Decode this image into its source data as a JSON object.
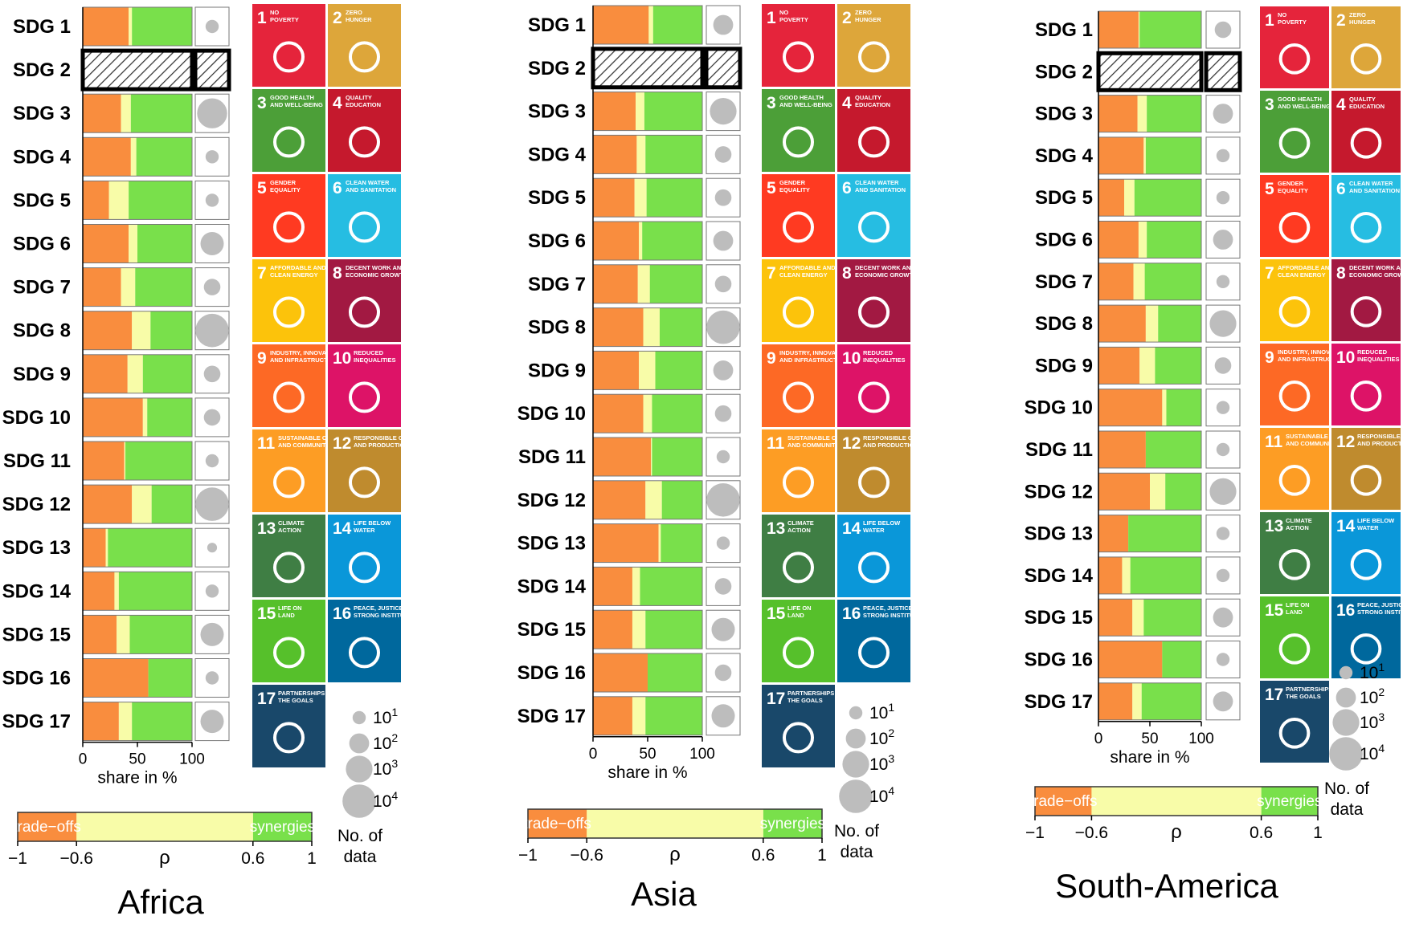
{
  "colors": {
    "tradeoff": "#f98d3e",
    "neutral": "#f8fca8",
    "synergy": "#79e04b",
    "dot": "#bdbdbd"
  },
  "sdg_labels": [
    "SDG 1",
    "SDG 2",
    "SDG 3",
    "SDG 4",
    "SDG 5",
    "SDG 6",
    "SDG 7",
    "SDG 8",
    "SDG 9",
    "SDG 10",
    "SDG 11",
    "SDG 12",
    "SDG 13",
    "SDG 14",
    "SDG 15",
    "SDG 16",
    "SDG 17"
  ],
  "x_axis": {
    "ticks": [
      "0",
      "50",
      "100"
    ],
    "label": "share in %"
  },
  "colorbar": {
    "left_label": "trade−offs",
    "right_label": "synergies",
    "ticks": [
      "−1",
      "−0.6",
      "0.6",
      "1"
    ],
    "symbol": "ρ"
  },
  "size_legend": {
    "entries": [
      "10",
      "10",
      "10",
      "10"
    ],
    "exponents": [
      "1",
      "2",
      "3",
      "4"
    ],
    "title_line1": "No. of",
    "title_line2": "data"
  },
  "tiles": [
    {
      "num": "1",
      "name": "NO POVERTY",
      "color": "#e5243b"
    },
    {
      "num": "2",
      "name": "ZERO HUNGER",
      "color": "#dda63a"
    },
    {
      "num": "3",
      "name": "GOOD HEALTH AND WELL-BEING",
      "color": "#4c9f38"
    },
    {
      "num": "4",
      "name": "QUALITY EDUCATION",
      "color": "#c5192d"
    },
    {
      "num": "5",
      "name": "GENDER EQUALITY",
      "color": "#ff3a21"
    },
    {
      "num": "6",
      "name": "CLEAN WATER AND SANITATION",
      "color": "#26bde2"
    },
    {
      "num": "7",
      "name": "AFFORDABLE AND CLEAN ENERGY",
      "color": "#fcc30b"
    },
    {
      "num": "8",
      "name": "DECENT WORK AND ECONOMIC GROWTH",
      "color": "#a21942"
    },
    {
      "num": "9",
      "name": "INDUSTRY, INNOVATION AND INFRASTRUCTURE",
      "color": "#fd6925"
    },
    {
      "num": "10",
      "name": "REDUCED INEQUALITIES",
      "color": "#dd1367"
    },
    {
      "num": "11",
      "name": "SUSTAINABLE CITIES AND COMMUNITIES",
      "color": "#fd9d24"
    },
    {
      "num": "12",
      "name": "RESPONSIBLE CONSUMPTION AND PRODUCTION",
      "color": "#bf8b2e"
    },
    {
      "num": "13",
      "name": "CLIMATE ACTION",
      "color": "#3f7e44"
    },
    {
      "num": "14",
      "name": "LIFE BELOW WATER",
      "color": "#0a97d9"
    },
    {
      "num": "15",
      "name": "LIFE ON LAND",
      "color": "#56c02b"
    },
    {
      "num": "16",
      "name": "PEACE, JUSTICE AND STRONG INSTITUTIONS",
      "color": "#00689d"
    },
    {
      "num": "17",
      "name": "PARTNERSHIPS FOR THE GOALS",
      "color": "#19486a"
    }
  ],
  "chart_data": [
    {
      "type": "bar",
      "title": "Africa",
      "orientation": "horizontal-stacked",
      "xlabel": "share in %",
      "xlim": [
        0,
        100
      ],
      "categories": [
        "SDG 1",
        "SDG 2",
        "SDG 3",
        "SDG 4",
        "SDG 5",
        "SDG 6",
        "SDG 7",
        "SDG 8",
        "SDG 9",
        "SDG 10",
        "SDG 11",
        "SDG 12",
        "SDG 13",
        "SDG 14",
        "SDG 15",
        "SDG 16",
        "SDG 17"
      ],
      "series": [
        {
          "name": "trade−offs",
          "values": [
            42,
            null,
            35,
            44,
            24,
            42,
            35,
            45,
            41,
            55,
            38,
            45,
            21,
            29,
            31,
            60,
            33
          ]
        },
        {
          "name": "neutral",
          "values": [
            3,
            null,
            9,
            5,
            18,
            8,
            13,
            17,
            14,
            4,
            1,
            18,
            2,
            4,
            12,
            0,
            12
          ]
        },
        {
          "name": "synergies",
          "values": [
            55,
            null,
            56,
            51,
            58,
            50,
            52,
            38,
            45,
            41,
            61,
            37,
            77,
            67,
            57,
            40,
            55
          ]
        }
      ],
      "no_data_category": "SDG 2",
      "data_count_log10": [
        1,
        null,
        3.5,
        1,
        1,
        2.5,
        1.5,
        4,
        1.5,
        1.5,
        1,
        4,
        0.5,
        1,
        2.5,
        1,
        2.5
      ]
    },
    {
      "type": "bar",
      "title": "Asia",
      "orientation": "horizontal-stacked",
      "xlabel": "share in %",
      "xlim": [
        0,
        100
      ],
      "categories": [
        "SDG 1",
        "SDG 2",
        "SDG 3",
        "SDG 4",
        "SDG 5",
        "SDG 6",
        "SDG 7",
        "SDG 8",
        "SDG 9",
        "SDG 10",
        "SDG 11",
        "SDG 12",
        "SDG 13",
        "SDG 14",
        "SDG 15",
        "SDG 16",
        "SDG 17"
      ],
      "series": [
        {
          "name": "trade−offs",
          "values": [
            51,
            null,
            39,
            40,
            38,
            42,
            41,
            46,
            42,
            46,
            53,
            48,
            60,
            36,
            36,
            50,
            36
          ]
        },
        {
          "name": "neutral",
          "values": [
            4,
            null,
            8,
            8,
            11,
            3,
            11,
            15,
            15,
            8,
            1,
            15,
            2,
            7,
            12,
            0,
            12
          ]
        },
        {
          "name": "synergies",
          "values": [
            45,
            null,
            53,
            52,
            51,
            55,
            48,
            39,
            43,
            46,
            46,
            37,
            38,
            57,
            52,
            50,
            52
          ]
        }
      ],
      "no_data_category": "SDG 2",
      "data_count_log10": [
        2,
        null,
        3,
        1.5,
        1.5,
        2,
        1.5,
        4,
        2,
        1.5,
        1,
        4,
        1,
        1.5,
        2.5,
        1.5,
        2.5
      ]
    },
    {
      "type": "bar",
      "title": "South-America",
      "orientation": "horizontal-stacked",
      "xlabel": "share in %",
      "xlim": [
        0,
        100
      ],
      "categories": [
        "SDG 1",
        "SDG 2",
        "SDG 3",
        "SDG 4",
        "SDG 5",
        "SDG 6",
        "SDG 7",
        "SDG 8",
        "SDG 9",
        "SDG 10",
        "SDG 11",
        "SDG 12",
        "SDG 13",
        "SDG 14",
        "SDG 15",
        "SDG 16",
        "SDG 17"
      ],
      "series": [
        {
          "name": "trade−offs",
          "values": [
            39,
            null,
            38,
            44,
            25,
            39,
            34,
            46,
            40,
            62,
            46,
            50,
            29,
            23,
            33,
            62,
            33
          ]
        },
        {
          "name": "neutral",
          "values": [
            1,
            null,
            9,
            2,
            10,
            8,
            11,
            12,
            15,
            4,
            0,
            15,
            0,
            8,
            11,
            0,
            9
          ]
        },
        {
          "name": "synergies",
          "values": [
            60,
            null,
            53,
            54,
            65,
            53,
            55,
            42,
            45,
            34,
            54,
            35,
            71,
            69,
            56,
            38,
            58
          ]
        }
      ],
      "no_data_category": "SDG 2",
      "data_count_log10": [
        1.5,
        null,
        2,
        1,
        1,
        2,
        1,
        3,
        1.5,
        1,
        1,
        3,
        1,
        1,
        2,
        1,
        2
      ]
    }
  ]
}
